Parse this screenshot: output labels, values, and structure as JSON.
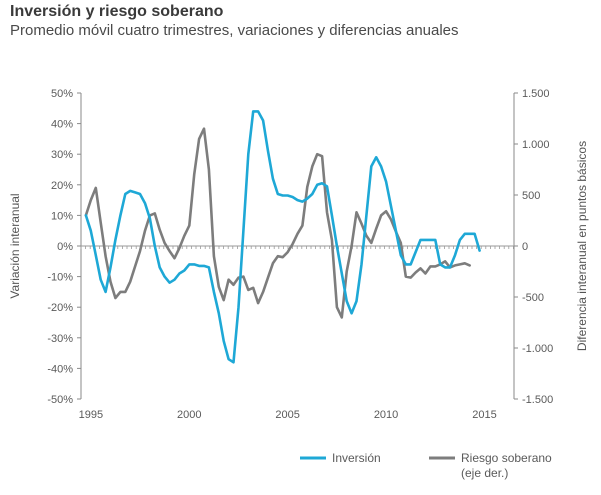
{
  "title": "Inversión y riesgo soberano",
  "subtitle": "Promedio móvil cuatro trimestres, variaciones y diferencias anuales",
  "colors": {
    "inversion": "#1ea8d6",
    "riesgo": "#7d7d7d",
    "axis": "#8a8a8a",
    "grid": "#9a9a9a"
  },
  "chart_data": {
    "type": "line",
    "xlabel": "",
    "ylabel": "Variación interanual",
    "y2label": "Diferencia interanual en puntos básicos",
    "xlim": [
      1994.5,
      2016.5
    ],
    "ylim": [
      -50,
      50
    ],
    "y2lim": [
      1500,
      -1500
    ],
    "x_ticks": [
      1995,
      2000,
      2005,
      2010,
      2015
    ],
    "x_tick_labels": [
      "1995",
      "2000",
      "2005",
      "2010",
      "2015"
    ],
    "y_ticks": [
      50,
      40,
      30,
      20,
      10,
      0,
      -10,
      -20,
      -30,
      -40,
      -50
    ],
    "y_tick_labels": [
      "50%",
      "40%",
      "30%",
      "20%",
      "10%",
      "0%",
      "-10%",
      "-20%",
      "-30%",
      "-40%",
      "-50%"
    ],
    "y2_ticks": [
      -1500,
      -1000,
      -500,
      0,
      500,
      1000,
      1500
    ],
    "y2_tick_labels": [
      "-1.500",
      "-1.000",
      "-500",
      "0",
      "500",
      "1.000",
      "1.500"
    ],
    "grid": false,
    "legend_position": "bottom-right",
    "series": [
      {
        "name": "Inversión",
        "axis": "left",
        "x": [
          1994.75,
          1995.0,
          1995.25,
          1995.5,
          1995.75,
          1996.0,
          1996.25,
          1996.5,
          1996.75,
          1997.0,
          1997.25,
          1997.5,
          1997.75,
          1998.0,
          1998.25,
          1998.5,
          1998.75,
          1999.0,
          1999.25,
          1999.5,
          1999.75,
          2000.0,
          2000.25,
          2000.5,
          2000.75,
          2001.0,
          2001.25,
          2001.5,
          2001.75,
          2002.0,
          2002.25,
          2002.5,
          2002.75,
          2003.0,
          2003.25,
          2003.5,
          2003.75,
          2004.0,
          2004.25,
          2004.5,
          2004.75,
          2005.0,
          2005.25,
          2005.5,
          2005.75,
          2006.0,
          2006.25,
          2006.5,
          2006.75,
          2007.0,
          2007.25,
          2007.5,
          2007.75,
          2008.0,
          2008.25,
          2008.5,
          2008.75,
          2009.0,
          2009.25,
          2009.5,
          2009.75,
          2010.0,
          2010.25,
          2010.5,
          2010.75,
          2011.0,
          2011.25,
          2011.5,
          2011.75,
          2012.0,
          2012.25,
          2012.5,
          2012.75,
          2013.0,
          2013.25,
          2013.5,
          2013.75,
          2014.0,
          2014.25,
          2014.5,
          2014.75,
          2015.0,
          2015.25,
          2015.5,
          2015.75,
          2016.0,
          2016.25
        ],
        "values": [
          10,
          5,
          -3,
          -11,
          -15,
          -7,
          2,
          10,
          17,
          18,
          17.5,
          17,
          14,
          9,
          0,
          -7,
          -10,
          -12,
          -11,
          -9,
          -8,
          -6,
          -6,
          -6.5,
          -6.5,
          -7,
          -15,
          -22,
          -31,
          -37,
          -38,
          -20,
          5,
          30,
          44,
          44,
          41,
          31,
          22,
          17,
          16.5,
          16.5,
          16,
          15,
          14.5,
          15.5,
          17,
          20,
          20.5,
          19.5,
          10,
          0,
          -9,
          -18,
          -22,
          -18,
          -6,
          10,
          26,
          29,
          26,
          21,
          13,
          5,
          -3,
          -6,
          -6,
          -2,
          2,
          2,
          2,
          2,
          -6,
          -7,
          -7,
          -3,
          2,
          4,
          4,
          4,
          -1.5,
          null,
          null,
          null,
          null,
          null,
          null
        ]
      },
      {
        "name": "Riesgo soberano",
        "legend_label_line2": "(eje der.)",
        "axis": "right",
        "x": [
          1994.75,
          1995.0,
          1995.25,
          1995.5,
          1995.75,
          1996.0,
          1996.25,
          1996.5,
          1996.75,
          1997.0,
          1997.25,
          1997.5,
          1997.75,
          1998.0,
          1998.25,
          1998.5,
          1998.75,
          1999.0,
          1999.25,
          1999.5,
          1999.75,
          2000.0,
          2000.25,
          2000.5,
          2000.75,
          2001.0,
          2001.25,
          2001.5,
          2001.75,
          2002.0,
          2002.25,
          2002.5,
          2002.75,
          2003.0,
          2003.25,
          2003.5,
          2003.75,
          2004.0,
          2004.25,
          2004.5,
          2004.75,
          2005.0,
          2005.25,
          2005.5,
          2005.75,
          2006.0,
          2006.25,
          2006.5,
          2006.75,
          2007.0,
          2007.25,
          2007.5,
          2007.75,
          2008.0,
          2008.25,
          2008.5,
          2008.75,
          2009.0,
          2009.25,
          2009.5,
          2009.75,
          2010.0,
          2010.25,
          2010.5,
          2010.75,
          2011.0,
          2011.25,
          2011.5,
          2011.75,
          2012.0,
          2012.25,
          2012.5,
          2012.75,
          2013.0,
          2013.25,
          2013.5,
          2013.75,
          2014.0,
          2014.25,
          2014.5,
          2014.75,
          2015.0,
          2015.25,
          2015.5,
          2015.75,
          2016.0,
          2016.25
        ],
        "values": [
          300,
          450,
          570,
          230,
          -100,
          -350,
          -510,
          -450,
          -450,
          -350,
          -200,
          -50,
          150,
          300,
          320,
          160,
          30,
          -50,
          -120,
          -20,
          100,
          200,
          700,
          1050,
          1150,
          750,
          -100,
          -400,
          -530,
          -330,
          -380,
          -310,
          -300,
          -430,
          -410,
          -560,
          -450,
          -310,
          -170,
          -100,
          -110,
          -60,
          20,
          120,
          200,
          580,
          780,
          900,
          880,
          330,
          60,
          -600,
          -700,
          -250,
          0,
          330,
          220,
          100,
          30,
          170,
          300,
          340,
          260,
          140,
          30,
          -300,
          -310,
          -260,
          -220,
          -270,
          -200,
          -200,
          -180,
          -150,
          -210,
          -190,
          -180,
          -170,
          -190,
          null,
          null,
          null,
          null,
          null,
          null,
          null,
          null
        ]
      }
    ]
  },
  "legend": {
    "inversion": "Inversión",
    "riesgo_line1": "Riesgo soberano",
    "riesgo_line2": "(eje der.)"
  }
}
